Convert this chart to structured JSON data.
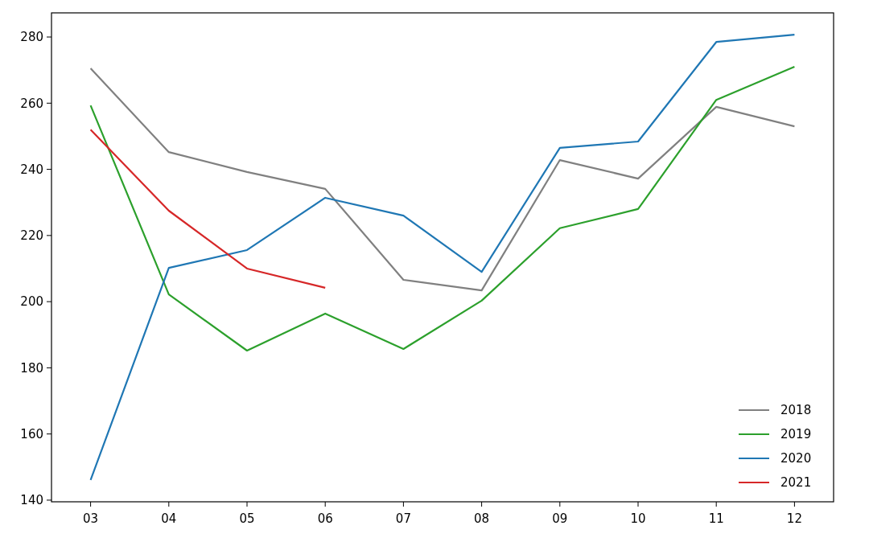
{
  "chart_data": {
    "type": "line",
    "categories": [
      "03",
      "04",
      "05",
      "06",
      "07",
      "08",
      "09",
      "10",
      "11",
      "12"
    ],
    "series": [
      {
        "name": "2018",
        "color": "#808080",
        "values": [
          270.5,
          245.2,
          239.2,
          234.1,
          206.6,
          203.4,
          242.8,
          237.2,
          258.9,
          253.0
        ]
      },
      {
        "name": "2019",
        "color": "#2ca02c",
        "values": [
          259.3,
          202.2,
          185.2,
          196.4,
          185.7,
          200.3,
          222.2,
          228.0,
          261.0,
          271.0
        ]
      },
      {
        "name": "2020",
        "color": "#1f77b4",
        "values": [
          146.1,
          210.2,
          215.6,
          231.4,
          226.0,
          209.0,
          246.5,
          248.4,
          278.5,
          280.7
        ]
      },
      {
        "name": "2021",
        "color": "#d62728",
        "values": [
          252.0,
          227.5,
          210.0,
          204.2,
          null,
          null,
          null,
          null,
          null,
          null
        ]
      }
    ],
    "ylim": [
      139.5,
      287.3
    ],
    "yticks": [
      140,
      160,
      180,
      200,
      220,
      240,
      260,
      280
    ],
    "grid": false,
    "legend": "bottom right",
    "marker": "none",
    "line_style": "solid"
  }
}
